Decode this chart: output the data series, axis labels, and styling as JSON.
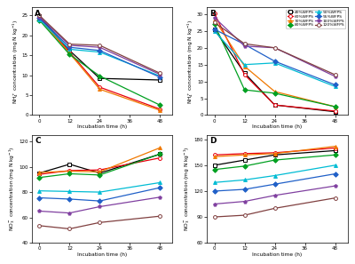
{
  "x": [
    0,
    12,
    24,
    36,
    48
  ],
  "labels": [
    "40%WFPS",
    "60%WFPS",
    "70%WFPS",
    "80%WFPS",
    "90%WFPS",
    "95%WFPS",
    "100%WFPS",
    "120%WFPS"
  ],
  "colors": [
    "#000000",
    "#e8000d",
    "#f07800",
    "#00a020",
    "#00bcd4",
    "#2060c8",
    "#8040a0",
    "#804040"
  ],
  "markers": [
    "s",
    "o",
    "^",
    "D",
    "^",
    "D",
    "p",
    "o"
  ],
  "mfc_open": [
    true,
    true,
    false,
    false,
    false,
    false,
    false,
    true
  ],
  "A_data": [
    [
      24.8,
      16.2,
      9.2,
      null,
      8.8
    ],
    [
      24.5,
      15.8,
      7.0,
      null,
      1.5
    ],
    [
      24.2,
      15.5,
      6.5,
      null,
      1.2
    ],
    [
      23.8,
      15.2,
      9.8,
      null,
      2.5
    ],
    [
      24.0,
      16.5,
      15.8,
      null,
      9.8
    ],
    [
      24.3,
      17.0,
      16.2,
      null,
      9.5
    ],
    [
      24.7,
      17.5,
      17.0,
      null,
      10.2
    ],
    [
      25.0,
      17.8,
      17.5,
      null,
      10.5
    ]
  ],
  "B_data": [
    [
      25.5,
      12.5,
      3.0,
      null,
      1.0
    ],
    [
      30.2,
      12.0,
      3.0,
      null,
      1.2
    ],
    [
      28.5,
      14.5,
      7.0,
      null,
      2.5
    ],
    [
      27.0,
      7.5,
      6.5,
      null,
      2.5
    ],
    [
      25.0,
      15.0,
      15.5,
      null,
      8.5
    ],
    [
      25.5,
      21.0,
      16.0,
      null,
      9.0
    ],
    [
      29.0,
      20.5,
      20.0,
      null,
      11.5
    ],
    [
      27.5,
      21.2,
      20.0,
      null,
      12.0
    ]
  ],
  "C_data": [
    [
      95.0,
      102.0,
      95.0,
      null,
      110.0
    ],
    [
      94.0,
      97.0,
      97.5,
      null,
      107.0
    ],
    [
      95.5,
      96.5,
      96.0,
      null,
      115.0
    ],
    [
      91.5,
      94.5,
      93.5,
      null,
      110.0
    ],
    [
      81.0,
      80.5,
      80.0,
      null,
      87.5
    ],
    [
      75.5,
      74.5,
      73.0,
      null,
      83.5
    ],
    [
      65.0,
      63.5,
      68.5,
      null,
      76.0
    ],
    [
      53.5,
      51.0,
      56.0,
      null,
      61.0
    ]
  ],
  "D_data": [
    [
      150.0,
      156.0,
      162.0,
      null,
      167.0
    ],
    [
      162.0,
      163.5,
      164.5,
      null,
      170.0
    ],
    [
      160.0,
      162.0,
      163.5,
      null,
      172.0
    ],
    [
      145.0,
      149.0,
      156.0,
      null,
      162.0
    ],
    [
      130.0,
      133.0,
      138.0,
      null,
      150.0
    ],
    [
      120.0,
      122.0,
      128.0,
      null,
      140.0
    ],
    [
      105.0,
      108.0,
      115.0,
      null,
      126.0
    ],
    [
      90.0,
      92.0,
      100.0,
      null,
      112.0
    ]
  ],
  "A_ylim": [
    0,
    27
  ],
  "B_ylim": [
    0,
    32
  ],
  "C_ylim": [
    40,
    125
  ],
  "D_ylim": [
    60,
    185
  ],
  "A_yticks": [
    0,
    5,
    10,
    15,
    20,
    25
  ],
  "B_yticks": [
    0,
    5,
    10,
    15,
    20,
    25,
    30
  ],
  "C_yticks": [
    40,
    60,
    80,
    100,
    120
  ],
  "D_yticks": [
    60,
    90,
    120,
    150,
    180
  ],
  "A_ylabel": "NH$_4^+$ concentration (mg N kg$^{-1}$)",
  "B_ylabel": "NH$_4^+$ concentration (mg N kg$^{-1}$)",
  "C_ylabel": "NO$_3^-$ concentration (mg N kg$^{-1}$)",
  "D_ylabel": "NO$_3^-$ concentration (mg N kg$^{-1}$)",
  "xlabel": "Incubation time (h)",
  "xticks": [
    0,
    12,
    24,
    36,
    48
  ]
}
